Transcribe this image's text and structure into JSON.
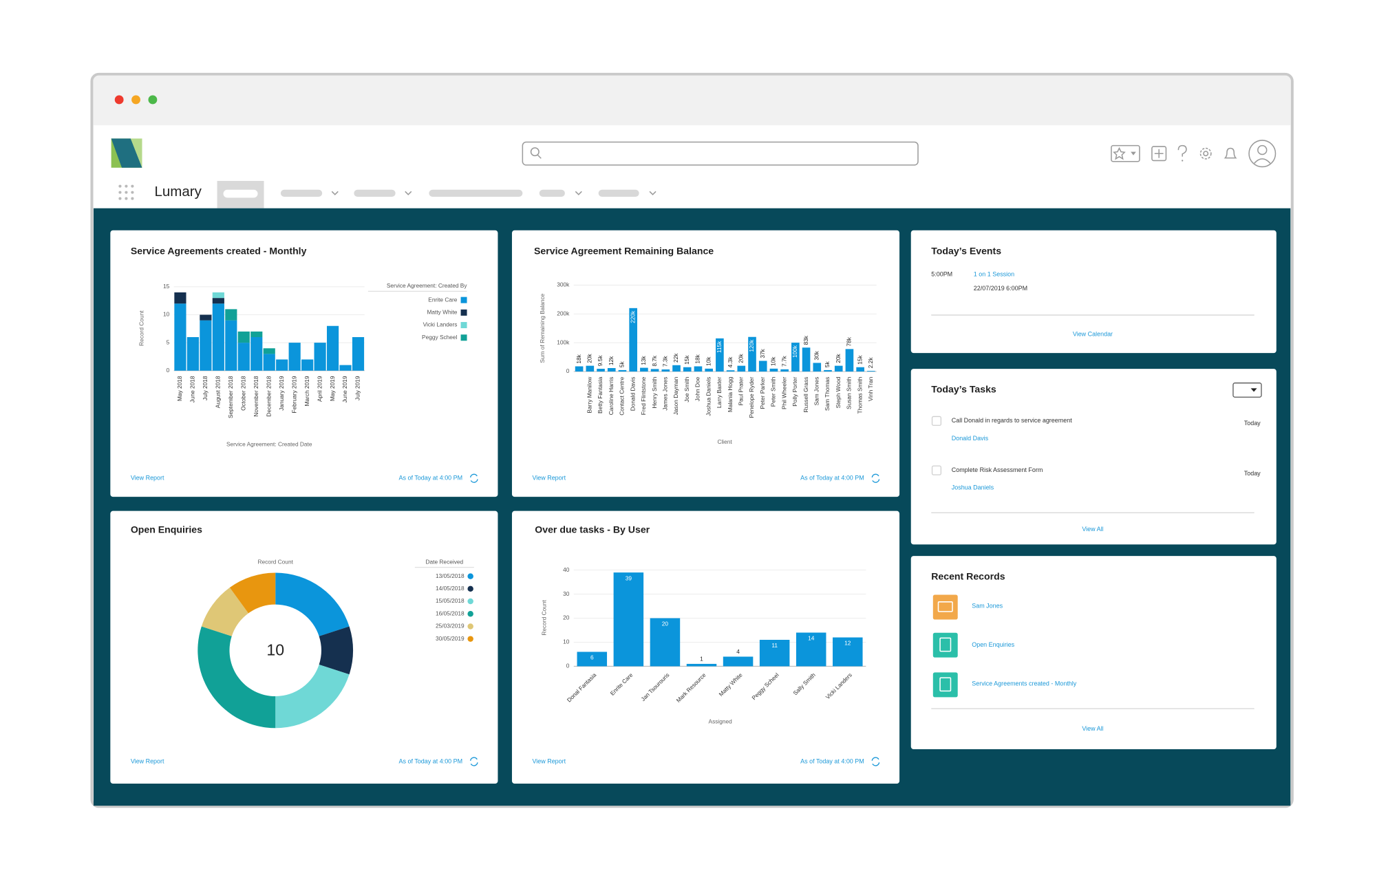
{
  "app": {
    "name": "Lumary"
  },
  "widgets": [
    {
      "title": "Service Agreements created - Monthly",
      "chart": {
        "type": "bar",
        "stacked": true,
        "y_label": "Record Count",
        "x_label": "Service Agreement: Created Date",
        "legend_title": "Service Agreement: Created By",
        "legend": "right",
        "categories": [
          "May 2018",
          "June 2018",
          "July 2018",
          "August 2018",
          "September 2018",
          "October 2018",
          "November 2018",
          "December 2018",
          "January 2019",
          "February 2019",
          "March 2019",
          "April 2019",
          "May 2019",
          "June 2019",
          "July 2019"
        ],
        "series": [
          {
            "name": "Enrite Care",
            "color": "#0b95db",
            "values": [
              12,
              6,
              9,
              12,
              9,
              5,
              6,
              3,
              2,
              5,
              2,
              5,
              8,
              1,
              6
            ]
          },
          {
            "name": "Matty White",
            "color": "#15304f",
            "values": [
              2,
              0,
              1,
              1,
              0,
              0,
              0,
              0,
              0,
              0,
              0,
              0,
              0,
              0,
              0
            ]
          },
          {
            "name": "Vicki Landers",
            "color": "#6fd8d6",
            "values": [
              0,
              0,
              0,
              1,
              0,
              0,
              0,
              0,
              0,
              0,
              0,
              0,
              0,
              0,
              0
            ]
          },
          {
            "name": "Peggy Scheel",
            "color": "#11a197",
            "values": [
              0,
              0,
              0,
              0,
              2,
              2,
              1,
              1,
              0,
              0,
              0,
              0,
              0,
              0,
              0
            ]
          }
        ],
        "ylim": [
          0,
          15
        ],
        "yticks": [
          0,
          5,
          10,
          15
        ],
        "grid": true
      },
      "footer": {
        "link": "View Report",
        "status": "As of Today at 4:00 PM"
      }
    },
    {
      "title": "Service Agreement Remaining Balance",
      "chart": {
        "type": "bar",
        "y_label": "Sum of Remaining Balance",
        "x_label": "Client",
        "color": "#0b95db",
        "data_labels": true,
        "categories": [
          null,
          "Barry Manilow",
          "Betty Fantasia",
          "Caroline Harris",
          "Contact Centre",
          "Donald Davis",
          "Fred Flintstone",
          "Henry Smith",
          "James Jones",
          "Jason Dayman",
          "Joe Smith",
          "John Doe",
          "Joshua Daniels",
          "Larry Baxter",
          "Malania Hogg",
          "Paul Prater",
          "Penelope Ryder",
          "Peter Parker",
          "Peter Smith",
          "Phil Wheeler",
          "Polly Porter",
          "Russell Grass",
          "Sam Jones",
          "Sam Thomas",
          "Steph Wood",
          "Susan Smith",
          "Thomas Smith",
          "Vinh Tran"
        ],
        "values": [
          18000,
          20000,
          9500,
          12000,
          5000,
          220000,
          13000,
          8700,
          7300,
          22000,
          15000,
          18000,
          10000,
          115000,
          4300,
          20000,
          120000,
          37000,
          10000,
          7700,
          100000,
          83000,
          30000,
          5000,
          20000,
          78000,
          15000,
          2200
        ],
        "value_labels": [
          "18k",
          "20k",
          "9.5k",
          "12k",
          "5k",
          "220k",
          "13k",
          "8.7k",
          "7.3k",
          "22k",
          "15k",
          "18k",
          "10k",
          "115k",
          "4.3k",
          "20k",
          "120k",
          "37k",
          "10k",
          "7.7k",
          "100k",
          "83k",
          "30k",
          "5k",
          "20k",
          "78k",
          "15k",
          "2.2k"
        ],
        "ylim": [
          0,
          300000
        ],
        "yticks": [
          0,
          {
            "value": 100000,
            "label": "100k"
          },
          {
            "value": 200000,
            "label": "200k"
          },
          {
            "value": 300000,
            "label": "300k"
          }
        ],
        "grid": true
      },
      "footer": {
        "link": "View Report",
        "status": "As of Today at 4:00 PM"
      }
    },
    {
      "title": "Open Enquiries",
      "chart": {
        "type": "donut",
        "top_label": "Record Count",
        "total": 10,
        "legend_title": "Date Received",
        "legend": "right",
        "categories": [
          "13/05/2018",
          "14/05/2018",
          "15/05/2018",
          "16/05/2018",
          "25/03/2019",
          "30/05/2019"
        ],
        "values": [
          2,
          1,
          2,
          3,
          1,
          1
        ],
        "colors": [
          "#0b95db",
          "#15304f",
          "#6fd8d6",
          "#11a197",
          "#dfc776",
          "#e8960f"
        ]
      },
      "footer": {
        "link": "View Report",
        "status": "As of Today at 4:00 PM"
      }
    },
    {
      "title": "Over due tasks - By User",
      "chart": {
        "type": "bar",
        "y_label": "Record Count",
        "x_label": "Assigned",
        "color": "#0b95db",
        "data_labels": true,
        "categories": [
          "Donal Fantasia",
          "Enrite Care",
          "Jan Tsourouris",
          "Mark Resource",
          "Matty White",
          "Peggy Scheel",
          "Sally Smith",
          "Vicki Landers"
        ],
        "values": [
          6,
          39,
          20,
          1,
          4,
          11,
          14,
          12
        ],
        "ylim": [
          0,
          40
        ],
        "yticks": [
          0,
          10,
          20,
          30,
          40
        ],
        "grid": true
      },
      "footer": {
        "link": "View Report",
        "status": "As of Today at 4:00 PM"
      }
    }
  ],
  "events": {
    "title": "Today’s Events",
    "items": [
      {
        "time": "5:00PM",
        "name": "1 on 1 Session",
        "end": "22/07/2019 6:00PM"
      }
    ],
    "link": "View Calendar"
  },
  "tasks": {
    "title": "Today’s Tasks",
    "items": [
      {
        "text": "Call Donald in regards to service agreement",
        "contact": "Donald Davis",
        "due": "Today"
      },
      {
        "text": "Complete Risk Assessment Form",
        "contact": "Joshua Daniels",
        "due": "Today"
      }
    ],
    "link": "View All"
  },
  "recent": {
    "title": "Recent Records",
    "items": [
      "Sam Jones",
      "Open Enquiries",
      "Service Agreements created - Monthly"
    ],
    "link": "View All"
  }
}
